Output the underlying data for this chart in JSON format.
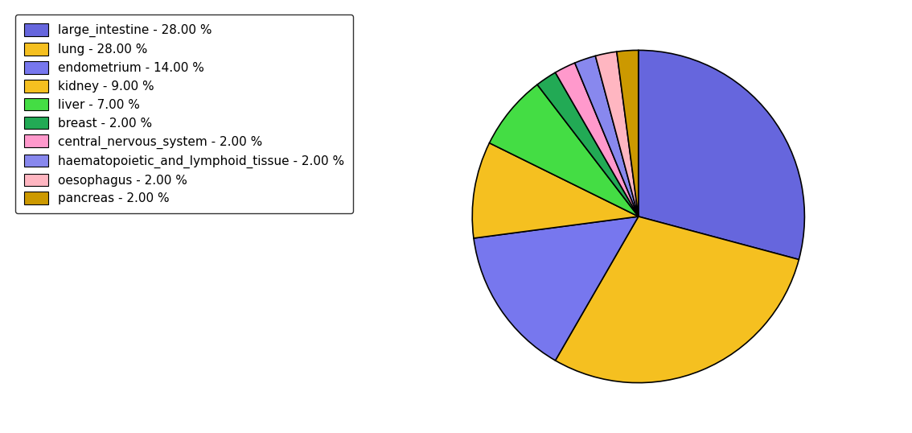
{
  "labels": [
    "large_intestine",
    "lung",
    "endometrium",
    "kidney",
    "liver",
    "breast",
    "central_nervous_system",
    "haematopoietic_and_lymphoid_tissue",
    "oesophagus",
    "pancreas"
  ],
  "values": [
    28,
    28,
    14,
    9,
    7,
    2,
    2,
    2,
    2,
    2
  ],
  "colors": [
    "#6666dd",
    "#f5c020",
    "#7777ee",
    "#f5c020",
    "#44dd44",
    "#22aa55",
    "#ff99cc",
    "#8888ee",
    "#ffb6c1",
    "#cc9900"
  ],
  "legend_labels": [
    "large_intestine - 28.00 %",
    "lung - 28.00 %",
    "endometrium - 14.00 %",
    "kidney - 9.00 %",
    "liver - 7.00 %",
    "breast - 2.00 %",
    "central_nervous_system - 2.00 %",
    "haematopoietic_and_lymphoid_tissue - 2.00 %",
    "oesophagus - 2.00 %",
    "pancreas - 2.00 %"
  ],
  "startangle": 90,
  "figsize": [
    11.34,
    5.38
  ],
  "dpi": 100
}
